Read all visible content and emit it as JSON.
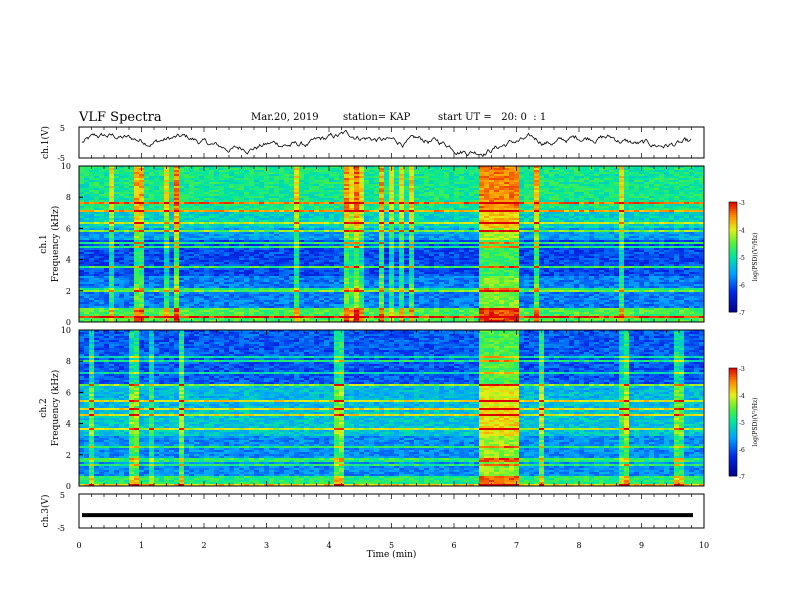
{
  "header": {
    "title": "VLF Spectra",
    "date": "Mar.20, 2019",
    "station": "station= KAP",
    "start_ut": "start UT =   20: 0  : 1"
  },
  "chart_data": [
    {
      "type": "line",
      "name": "ch1-waveform",
      "ylabel": "ch.1(V)",
      "ylim": [
        -5,
        5
      ],
      "yticks": [
        "5",
        "-5"
      ],
      "xlim": [
        0,
        10
      ]
    },
    {
      "type": "heatmap",
      "name": "ch1-spectrogram",
      "ylabel": "ch.1\nFrequency (kHz)",
      "ylabel_top": "ch.1",
      "ylabel_bottom": "Frequency (kHz)",
      "ylim": [
        0,
        10
      ],
      "yticks": [
        "0",
        "2",
        "4",
        "6",
        "8",
        "10"
      ],
      "xlim": [
        0,
        10
      ],
      "highlight_interval_min": [
        6.4,
        7.0
      ],
      "colorbar": {
        "label": "log(PSD)(V²/Hz)",
        "range": [
          -7,
          -3
        ],
        "ticks": [
          "-3",
          "-4",
          "-5",
          "-6",
          "-7"
        ]
      }
    },
    {
      "type": "heatmap",
      "name": "ch2-spectrogram",
      "ylabel_top": "ch.2",
      "ylabel_bottom": "Frequency (kHz)",
      "ylim": [
        0,
        10
      ],
      "yticks": [
        "0",
        "2",
        "4",
        "6",
        "8",
        "10"
      ],
      "xlim": [
        0,
        10
      ],
      "highlight_interval_min": [
        6.4,
        7.0
      ],
      "colorbar": {
        "label": "log(PSD)(V²/Hz)",
        "range": [
          -7,
          -3
        ],
        "ticks": [
          "-3",
          "-4",
          "-5",
          "-6",
          "-7"
        ]
      }
    },
    {
      "type": "line",
      "name": "ch3-waveform",
      "ylabel": "ch.3(V)",
      "ylim": [
        -5,
        5
      ],
      "yticks": [
        "5",
        "-5"
      ],
      "xlim": [
        0,
        10
      ],
      "level": -1.2
    }
  ],
  "xaxis": {
    "label": "Time (min)",
    "ticks": [
      "0",
      "1",
      "2",
      "3",
      "4",
      "5",
      "6",
      "7",
      "8",
      "9",
      "10"
    ]
  }
}
